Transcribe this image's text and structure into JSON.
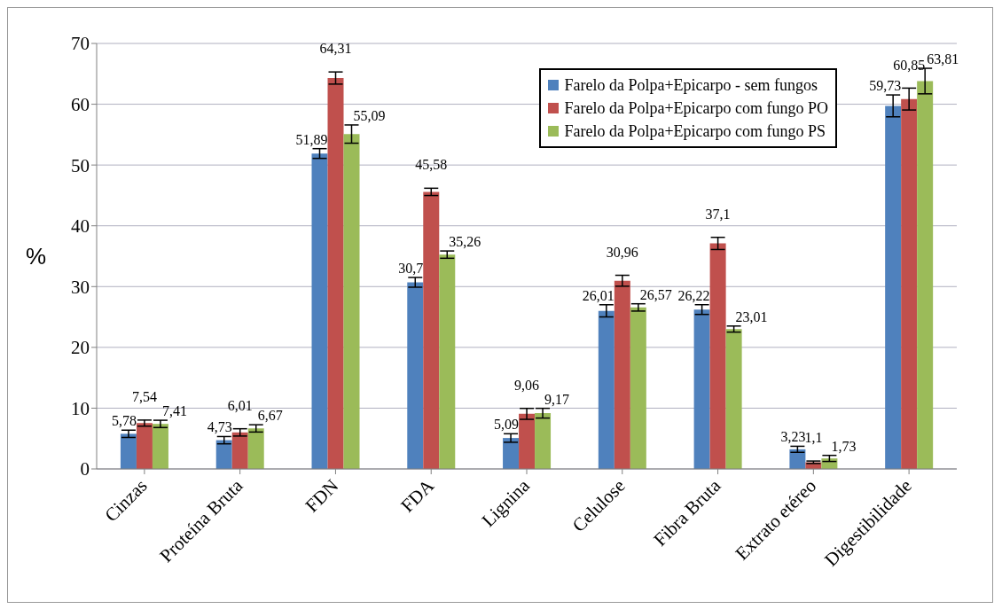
{
  "chart_data": {
    "type": "bar",
    "ylabel": "%",
    "categories": [
      "Cinzas",
      "Proteína Bruta",
      "FDN",
      "FDA",
      "Lignina",
      "Celulose",
      "Fibra Bruta",
      "Extrato etéreo",
      "Digestibilidade"
    ],
    "series": [
      {
        "name": "Farelo da Polpa+Epicarpo - sem fungos",
        "color": "#4f81bd",
        "values": [
          5.78,
          4.73,
          51.89,
          30.7,
          5.09,
          26.01,
          26.22,
          3.23,
          59.73
        ],
        "errors": [
          0.6,
          0.6,
          0.8,
          0.8,
          0.7,
          1.0,
          0.8,
          0.5,
          1.8
        ],
        "value_labels": [
          "5,78",
          "4,73",
          "51,89",
          "30,7",
          "5,09",
          "26,01",
          "26,22",
          "3,23",
          "59,73"
        ]
      },
      {
        "name": "Farelo da Polpa+Epicarpo com fungo PO",
        "color": "#c0504d",
        "values": [
          7.54,
          6.01,
          64.31,
          45.58,
          9.06,
          30.96,
          37.1,
          1.1,
          60.85
        ],
        "errors": [
          0.5,
          0.6,
          1.0,
          0.6,
          0.9,
          0.9,
          1.0,
          0.2,
          1.8
        ],
        "value_labels": [
          "7,54",
          "6,01",
          "64,31",
          "45,58",
          "9,06",
          "30,96",
          "37,1",
          "1,1",
          "60,85"
        ]
      },
      {
        "name": "Farelo da Polpa+Epicarpo com fungo PS",
        "color": "#9bbb59",
        "values": [
          7.41,
          6.67,
          55.09,
          35.26,
          9.17,
          26.57,
          23.01,
          1.73,
          63.81
        ],
        "errors": [
          0.6,
          0.6,
          1.5,
          0.6,
          0.8,
          0.6,
          0.5,
          0.5,
          2.1
        ],
        "value_labels": [
          "7,41",
          "6,67",
          "55,09",
          "35,26",
          "9,17",
          "26,57",
          "23,01",
          "1,73",
          "63,81"
        ]
      }
    ],
    "ylim": [
      0,
      70
    ],
    "yticks": [
      0,
      10,
      20,
      30,
      40,
      50,
      60,
      70
    ],
    "grid": "y",
    "legend": "top right"
  }
}
